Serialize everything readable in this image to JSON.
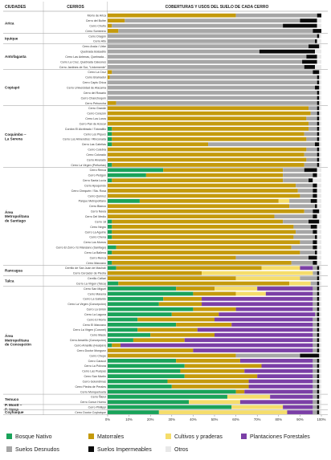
{
  "chart_data": {
    "type": "bar",
    "orientation": "horizontal",
    "stacked": true,
    "header": {
      "col_city": "CIUDADES",
      "col_hill": "CERROS",
      "col_chart": "COBERTURAS Y USOS DEL SUELO DE CADA CERRO"
    },
    "x_ticks": [
      "0%",
      "10%",
      "20%",
      "30%",
      "40%",
      "50%",
      "60%",
      "70%",
      "80%",
      "90%",
      "100%"
    ],
    "xlim": [
      0,
      100
    ],
    "legend_position": "bottom",
    "series": [
      {
        "name": "Bosque Nativo",
        "color": "#1aa35a"
      },
      {
        "name": "Matorrales",
        "color": "#c49a0c"
      },
      {
        "name": "Cultivos y praderas",
        "color": "#f5dd6b"
      },
      {
        "name": "Plantaciones Forestales",
        "color": "#7b3fa6"
      },
      {
        "name": "Suelos Desnudos",
        "color": "#a6a6a6"
      },
      {
        "name": "Suelos Impermeables",
        "color": "#0b0b0b"
      },
      {
        "name": "Otros",
        "color": "#e8e8e8"
      }
    ],
    "legend_order": [
      0,
      1,
      2,
      3,
      4,
      5,
      6
    ],
    "groups": [
      {
        "city": "Arica",
        "hills": [
          {
            "name": "Morro de Arica",
            "values": [
              0,
              60,
              0,
              0,
              38,
              2,
              0
            ]
          },
          {
            "name": "Cerro del Buitre",
            "values": [
              0,
              8,
              0,
              0,
              82,
              8,
              2
            ]
          },
          {
            "name": "Cerro Chuño",
            "values": [
              0,
              2,
              0,
              0,
              80,
              16,
              2
            ]
          },
          {
            "name": "Cerro Sombrero",
            "values": [
              0,
              5,
              0,
              0,
              91,
              4,
              0
            ]
          }
        ]
      },
      {
        "city": "Iquique",
        "hills": [
          {
            "name": "Cerro Dragón",
            "values": [
              0,
              0,
              0,
              0,
              98,
              1,
              1
            ]
          },
          {
            "name": "Cerro Alto",
            "values": [
              0,
              0,
              0,
              0,
              97,
              1,
              2
            ]
          }
        ]
      },
      {
        "city": "Antofagasta",
        "hills": [
          {
            "name": "Cerro Ancla / Urbe",
            "values": [
              0,
              0,
              0,
              0,
              94,
              5,
              1
            ]
          },
          {
            "name": "Quebrada Bolsadito",
            "values": [
              0,
              0,
              0,
              0,
              71,
              26,
              3
            ]
          },
          {
            "name": "Cerro Las Antenas, Quebrada...",
            "values": [
              0,
              0,
              0,
              0,
              93,
              5,
              2
            ]
          },
          {
            "name": "Cerro La Cruz, Quebrada Caleones",
            "values": [
              0,
              0,
              0,
              0,
              91,
              7,
              2
            ]
          },
          {
            "name": "Cerro Jardines de Sur, \"Linkemente\"",
            "values": [
              0,
              0,
              0,
              0,
              92,
              5,
              3
            ]
          }
        ]
      },
      {
        "city": "Copiapó",
        "hills": [
          {
            "name": "Cerro La Cruz",
            "values": [
              0,
              2,
              0,
              0,
              94,
              3,
              1
            ]
          },
          {
            "name": "Cerro Bramador",
            "values": [
              0,
              1,
              0,
              0,
              97,
              1,
              1
            ]
          },
          {
            "name": "Cerro Capis Chica",
            "values": [
              0,
              0,
              0,
              0,
              98,
              1,
              1
            ]
          },
          {
            "name": "Cerro Universidad de Atacama",
            "values": [
              0,
              0,
              0,
              0,
              97,
              2,
              1
            ]
          },
          {
            "name": "Cerro del Rosario",
            "values": [
              0,
              0,
              0,
              0,
              98,
              1,
              1
            ]
          },
          {
            "name": "Cerro Chanchoquín",
            "values": [
              0,
              0,
              0,
              0,
              98,
              1,
              1
            ]
          },
          {
            "name": "Cerro Pehuncha",
            "values": [
              0,
              4,
              0,
              0,
              94,
              1,
              1
            ]
          }
        ]
      },
      {
        "city": "Coquimbo – La Serena",
        "hills": [
          {
            "name": "Cerro Grande",
            "values": [
              0,
              94,
              0,
              0,
              4,
              1,
              1
            ]
          },
          {
            "name": "Cerro Corazón",
            "values": [
              0,
              95,
              0,
              0,
              3,
              1,
              1
            ]
          },
          {
            "name": "Cerro Los Loros",
            "values": [
              0,
              93,
              0,
              0,
              5,
              1,
              1
            ]
          },
          {
            "name": "Cerro Pan de Azúcar",
            "values": [
              0,
              94,
              0,
              0,
              4,
              1,
              1
            ]
          },
          {
            "name": "Cordón El Alcribrado / Totoralillo",
            "values": [
              2,
              92,
              0,
              0,
              4,
              1,
              1
            ]
          },
          {
            "name": "Cerro Los Piques",
            "values": [
              2,
              90,
              0,
              0,
              6,
              1,
              1
            ]
          },
          {
            "name": "Cerro Los Almendros / Rinconada",
            "values": [
              2,
              91,
              0,
              0,
              5,
              1,
              1
            ]
          },
          {
            "name": "Cerro Las Cabritas",
            "values": [
              2,
              45,
              0,
              0,
              50,
              2,
              1
            ]
          },
          {
            "name": "Cerro Culebra",
            "values": [
              0,
              93,
              0,
              0,
              5,
              1,
              1
            ]
          },
          {
            "name": "Cerro Colorado",
            "values": [
              0,
              92,
              0,
              0,
              6,
              1,
              1
            ]
          },
          {
            "name": "Cerro Alvarado",
            "values": [
              0,
              93,
              0,
              0,
              5,
              1,
              1
            ]
          },
          {
            "name": "Cerro La Virgen (Peñuelas)",
            "values": [
              2,
              90,
              0,
              0,
              6,
              1,
              1
            ]
          }
        ]
      },
      {
        "city": "Área Metropolitana de Santiago",
        "hills": [
          {
            "name": "Cerro Renca",
            "values": [
              26,
              56,
              0,
              0,
              10,
              6,
              2
            ]
          },
          {
            "name": "Cerro Pedgún",
            "values": [
              18,
              64,
              0,
              0,
              14,
              2,
              2
            ]
          },
          {
            "name": "Cerro Santa Lucía",
            "values": [
              2,
              80,
              0,
              0,
              12,
              2,
              4
            ]
          },
          {
            "name": "Cerro Apoquindo",
            "values": [
              0,
              88,
              0,
              0,
              8,
              2,
              2
            ]
          },
          {
            "name": "Cerro Chequén / Sta. Rosa",
            "values": [
              0,
              89,
              0,
              0,
              7,
              2,
              2
            ]
          },
          {
            "name": "Cerro Quinroz",
            "values": [
              0,
              90,
              0,
              0,
              6,
              2,
              2
            ]
          },
          {
            "name": "Parque Metropolitano",
            "values": [
              15,
              65,
              5,
              0,
              10,
              3,
              2
            ]
          },
          {
            "name": "Cerro Blanco",
            "values": [
              0,
              85,
              0,
              0,
              12,
              1,
              2
            ]
          },
          {
            "name": "Cerro Navia",
            "values": [
              0,
              92,
              0,
              0,
              4,
              3,
              1
            ]
          },
          {
            "name": "Cerro Del Medio",
            "values": [
              0,
              78,
              0,
              0,
              18,
              2,
              2
            ]
          },
          {
            "name": "Cerro 18",
            "values": [
              2,
              80,
              0,
              0,
              12,
              5,
              1
            ]
          },
          {
            "name": "Cerro Negro",
            "values": [
              2,
              85,
              0,
              0,
              8,
              3,
              2
            ]
          },
          {
            "name": "Cerro La Aguirre",
            "values": [
              2,
              86,
              0,
              0,
              8,
              2,
              2
            ]
          },
          {
            "name": "Cerro Chena",
            "values": [
              2,
              85,
              0,
              0,
              10,
              1,
              2
            ]
          },
          {
            "name": "Cerro Los Morros",
            "values": [
              0,
              90,
              0,
              0,
              6,
              2,
              2
            ]
          },
          {
            "name": "Cerro El Zorro / El Manzano (Santiago)",
            "values": [
              4,
              82,
              0,
              0,
              10,
              2,
              2
            ]
          },
          {
            "name": "Cerro La Ballena",
            "values": [
              2,
              88,
              0,
              0,
              7,
              1,
              2
            ]
          },
          {
            "name": "Cerro Renca",
            "values": [
              0,
              60,
              0,
              0,
              34,
              4,
              2
            ]
          },
          {
            "name": "Cerro Manzano",
            "values": [
              2,
              84,
              0,
              0,
              10,
              2,
              2
            ]
          }
        ]
      },
      {
        "city": "Rancagua",
        "hills": [
          {
            "name": "Cerrillo de San Juan de Machalí",
            "values": [
              4,
              68,
              18,
              6,
              2,
              1,
              1
            ]
          },
          {
            "name": "Cerro Cercador de Piedra",
            "values": [
              0,
              44,
              52,
              0,
              2,
              1,
              1
            ]
          }
        ]
      },
      {
        "city": "Talca",
        "hills": [
          {
            "name": "Cerrillo Cáñari",
            "values": [
              0,
              60,
              30,
              0,
              8,
              1,
              1
            ]
          },
          {
            "name": "Cerro La Virgen (Talca)",
            "values": [
              5,
              80,
              10,
              0,
              3,
              1,
              1
            ]
          }
        ]
      },
      {
        "city": "Área Metropolitana de Concepción",
        "hills": [
          {
            "name": "Cerro San Miguel",
            "values": [
              32,
              18,
              20,
              26,
              2,
              1,
              1
            ]
          },
          {
            "name": "Cerro Mavena",
            "values": [
              40,
              20,
              14,
              22,
              2,
              1,
              1
            ]
          },
          {
            "name": "Cerro La Gallardo",
            "values": [
              26,
              18,
              0,
              52,
              2,
              1,
              1
            ]
          },
          {
            "name": "Cerro La Virgen (Concepción)",
            "values": [
              24,
              20,
              0,
              52,
              2,
              1,
              1
            ]
          },
          {
            "name": "Cerro La Unión",
            "values": [
              40,
              20,
              0,
              36,
              2,
              1,
              1
            ]
          },
          {
            "name": "Cerro La Laguna",
            "values": [
              30,
              22,
              0,
              45,
              1,
              1,
              1
            ]
          },
          {
            "name": "Cerro El Morro",
            "values": [
              14,
              36,
              0,
              46,
              2,
              1,
              1
            ]
          },
          {
            "name": "Cerro El Manzano",
            "values": [
              32,
              26,
              0,
              38,
              2,
              1,
              1
            ]
          },
          {
            "name": "Cerro La Virgen (Coronel)",
            "values": [
              14,
              28,
              0,
              54,
              2,
              1,
              1
            ]
          },
          {
            "name": "Cerro Maule",
            "values": [
              20,
              30,
              0,
              46,
              2,
              1,
              1
            ]
          },
          {
            "name": "Cerro Amarillo (Concepción)",
            "values": [
              12,
              24,
              0,
              60,
              2,
              1,
              1
            ]
          },
          {
            "name": "Cerro Amarillo (Hualpén)",
            "values": [
              2,
              4,
              0,
              90,
              2,
              1,
              1
            ]
          },
          {
            "name": "Cerro Doctor Monguez",
            "values": [
              0,
              40,
              0,
              56,
              2,
              1,
              1
            ]
          },
          {
            "name": "Cerro Chepe",
            "values": [
              0,
              60,
              0,
              0,
              30,
              9,
              1
            ]
          },
          {
            "name": "Cerro Caracol",
            "values": [
              32,
              30,
              0,
              34,
              2,
              1,
              1
            ]
          },
          {
            "name": "Cerro La Pólvora",
            "values": [
              36,
              36,
              0,
              24,
              2,
              1,
              1
            ]
          },
          {
            "name": "Cerro Las Puelpas",
            "values": [
              34,
              30,
              0,
              32,
              2,
              1,
              1
            ]
          },
          {
            "name": "Cerro San Martín",
            "values": [
              36,
              34,
              0,
              26,
              2,
              1,
              1
            ]
          },
          {
            "name": "Cerro Golondrinas",
            "values": [
              28,
              38,
              0,
              30,
              2,
              1,
              1
            ]
          },
          {
            "name": "Cerro Piedra de Perales",
            "values": [
              30,
              36,
              0,
              30,
              2,
              1,
              1
            ]
          },
          {
            "name": "Cerro Monquehueta",
            "values": [
              60,
              4,
              0,
              32,
              2,
              1,
              1
            ]
          }
        ]
      },
      {
        "city": "Temuco",
        "hills": [
          {
            "name": "Cerro Ñielol",
            "values": [
              56,
              0,
              20,
              20,
              2,
              1,
              1
            ]
          },
          {
            "name": "Cerro Conun Huenu",
            "values": [
              38,
              0,
              24,
              34,
              2,
              1,
              1
            ]
          }
        ]
      },
      {
        "city": "P. Montt – P. Varas",
        "hills": [
          {
            "name": "Cerro Phillippi",
            "values": [
              58,
              0,
              24,
              14,
              2,
              1,
              1
            ]
          }
        ]
      },
      {
        "city": "Coyhaique",
        "hills": [
          {
            "name": "Cerro Doctor Coyhaique",
            "values": [
              24,
              0,
              60,
              12,
              2,
              1,
              1
            ]
          }
        ]
      }
    ]
  }
}
